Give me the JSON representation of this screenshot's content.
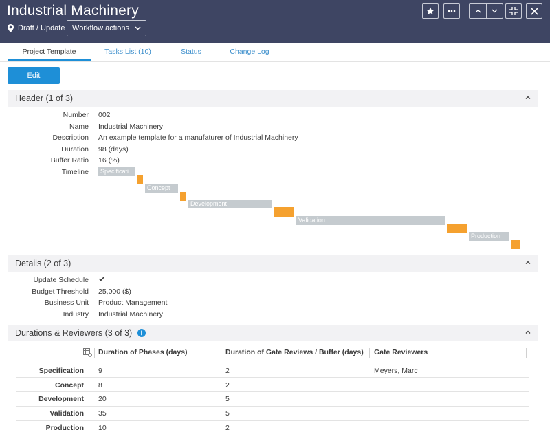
{
  "header": {
    "title": "Industrial Machinery",
    "state": "Draft / Update",
    "workflow_label": "Workflow actions"
  },
  "tabs": [
    {
      "label": "Project Template",
      "active": true
    },
    {
      "label": "Tasks List (10)",
      "active": false
    },
    {
      "label": "Status",
      "active": false
    },
    {
      "label": "Change Log",
      "active": false
    }
  ],
  "edit_label": "Edit",
  "section1": {
    "title": "Header (1 of 3)",
    "fields": [
      {
        "label": "Number",
        "value": "002"
      },
      {
        "label": "Name",
        "value": "Industrial Machinery"
      },
      {
        "label": "Description",
        "value": "An example template for a manufaturer of Industrial Machinery"
      },
      {
        "label": "Duration",
        "value": "98 (days)"
      },
      {
        "label": "Buffer Ratio",
        "value": "16 (%)"
      },
      {
        "label": "Timeline",
        "value": ""
      }
    ],
    "timeline": {
      "phases": [
        "Specificati...",
        "Concept",
        "Development",
        "Validation",
        "Production"
      ]
    }
  },
  "section2": {
    "title": "Details (2 of 3)",
    "fields": [
      {
        "label": "Update Schedule",
        "value": ""
      },
      {
        "label": "Budget Threshold",
        "value": "25,000 ($)"
      },
      {
        "label": "Business Unit",
        "value": "Product Management"
      },
      {
        "label": "Industry",
        "value": "Industrial Machinery"
      }
    ],
    "update_schedule_checked": true
  },
  "section3": {
    "title": "Durations & Reviewers (3 of 3)",
    "columns": [
      "Duration of Phases (days)",
      "Duration of Gate Reviews / Buffer (days)",
      "Gate Reviewers"
    ],
    "rows": [
      {
        "name": "Specification",
        "phase": "9",
        "gate": "2",
        "reviewers": "Meyers, Marc"
      },
      {
        "name": "Concept",
        "phase": "8",
        "gate": "2",
        "reviewers": ""
      },
      {
        "name": "Development",
        "phase": "20",
        "gate": "5",
        "reviewers": ""
      },
      {
        "name": "Validation",
        "phase": "35",
        "gate": "5",
        "reviewers": ""
      },
      {
        "name": "Production",
        "phase": "10",
        "gate": "2",
        "reviewers": ""
      }
    ]
  },
  "colors": {
    "titlebar": "#3e4563",
    "accent": "#1e8fd7",
    "phase_bar": "#c5cbcf",
    "gate_bar": "#f5a12f"
  },
  "icons": [
    "location-pin-icon",
    "chevron-down-icon",
    "star-icon",
    "more-icon",
    "chevron-up-icon",
    "collapse-icon",
    "close-icon",
    "info-icon",
    "table-settings-icon"
  ]
}
